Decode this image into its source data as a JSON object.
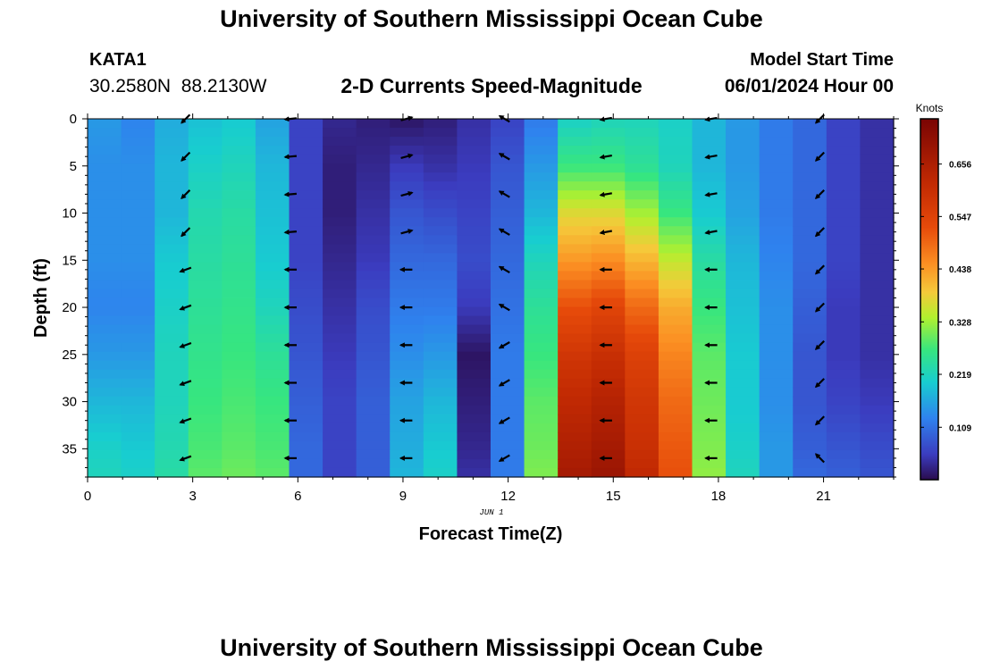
{
  "header": {
    "title": "University of Southern Mississippi Ocean Cube",
    "station": "KATA1",
    "coordinates": "30.2580N  88.2130W",
    "chart_title": "2-D Currents Speed-Magnitude",
    "model_start_label": "Model Start Time",
    "model_start_value": "06/01/2024 Hour 00",
    "date_stamp": "JUN 1"
  },
  "footer": {
    "title": "University of Southern Mississippi Ocean Cube"
  },
  "chart_data": {
    "type": "heatmap",
    "title": "2-D Currents Speed-Magnitude",
    "xlabel": "Forecast Time(Z)",
    "ylabel": "Depth (ft)",
    "xlim": [
      0,
      23
    ],
    "ylim": [
      38,
      0
    ],
    "x_ticks": [
      0,
      3,
      6,
      9,
      12,
      15,
      18,
      21
    ],
    "y_ticks": [
      0,
      5,
      10,
      15,
      20,
      25,
      30,
      35
    ],
    "colorbar": {
      "label": "Knots",
      "range": [
        0,
        0.75
      ],
      "ticks": [
        0.109,
        0.219,
        0.328,
        0.438,
        0.547,
        0.656
      ]
    },
    "hours": [
      0,
      1,
      2,
      3,
      4,
      5,
      6,
      7,
      8,
      9,
      10,
      11,
      12,
      13,
      14,
      15,
      16,
      17,
      18,
      19,
      20,
      21,
      22,
      23
    ],
    "depths": [
      0,
      5,
      10,
      15,
      20,
      25,
      30,
      35,
      38
    ],
    "speed_knots": [
      [
        0.15,
        0.13,
        0.17,
        0.19,
        0.2,
        0.16,
        0.06,
        0.03,
        0.02,
        0.01,
        0.02,
        0.04,
        0.06,
        0.12,
        0.21,
        0.22,
        0.22,
        0.21,
        0.18,
        0.15,
        0.12,
        0.1,
        0.06,
        0.04
      ],
      [
        0.14,
        0.14,
        0.18,
        0.21,
        0.22,
        0.18,
        0.06,
        0.02,
        0.03,
        0.05,
        0.04,
        0.05,
        0.08,
        0.15,
        0.27,
        0.27,
        0.25,
        0.22,
        0.18,
        0.15,
        0.12,
        0.1,
        0.06,
        0.04
      ],
      [
        0.14,
        0.14,
        0.18,
        0.23,
        0.24,
        0.19,
        0.06,
        0.02,
        0.04,
        0.08,
        0.07,
        0.06,
        0.09,
        0.18,
        0.37,
        0.37,
        0.33,
        0.27,
        0.2,
        0.16,
        0.12,
        0.1,
        0.06,
        0.04
      ],
      [
        0.14,
        0.14,
        0.2,
        0.24,
        0.25,
        0.2,
        0.06,
        0.03,
        0.05,
        0.1,
        0.1,
        0.07,
        0.1,
        0.22,
        0.44,
        0.45,
        0.41,
        0.35,
        0.24,
        0.18,
        0.13,
        0.1,
        0.06,
        0.04
      ],
      [
        0.13,
        0.13,
        0.21,
        0.25,
        0.26,
        0.22,
        0.07,
        0.04,
        0.07,
        0.12,
        0.12,
        0.05,
        0.11,
        0.25,
        0.52,
        0.54,
        0.49,
        0.42,
        0.27,
        0.19,
        0.14,
        0.09,
        0.05,
        0.04
      ],
      [
        0.15,
        0.15,
        0.22,
        0.26,
        0.27,
        0.25,
        0.08,
        0.05,
        0.08,
        0.14,
        0.15,
        0.01,
        0.12,
        0.27,
        0.58,
        0.6,
        0.55,
        0.46,
        0.29,
        0.2,
        0.14,
        0.08,
        0.05,
        0.04
      ],
      [
        0.18,
        0.18,
        0.22,
        0.27,
        0.28,
        0.27,
        0.09,
        0.06,
        0.09,
        0.16,
        0.18,
        0.02,
        0.12,
        0.29,
        0.62,
        0.64,
        0.58,
        0.49,
        0.3,
        0.2,
        0.14,
        0.08,
        0.06,
        0.05
      ],
      [
        0.21,
        0.2,
        0.23,
        0.28,
        0.29,
        0.28,
        0.1,
        0.06,
        0.09,
        0.17,
        0.2,
        0.03,
        0.12,
        0.3,
        0.65,
        0.67,
        0.6,
        0.51,
        0.31,
        0.21,
        0.15,
        0.09,
        0.08,
        0.07
      ],
      [
        0.22,
        0.21,
        0.24,
        0.29,
        0.3,
        0.29,
        0.1,
        0.06,
        0.09,
        0.18,
        0.21,
        0.04,
        0.12,
        0.31,
        0.67,
        0.69,
        0.62,
        0.52,
        0.32,
        0.22,
        0.15,
        0.1,
        0.09,
        0.08
      ]
    ],
    "vectors": {
      "hours": [
        2.8,
        5.8,
        9.1,
        11.9,
        14.8,
        17.8,
        20.9
      ],
      "depths": [
        0,
        4,
        8,
        12,
        16,
        20,
        24,
        28,
        32,
        36
      ],
      "directions_deg": [
        [
          225,
          225,
          225,
          225,
          200,
          200,
          200,
          200,
          200,
          200
        ],
        [
          185,
          185,
          185,
          185,
          180,
          180,
          180,
          180,
          180,
          180
        ],
        [
          15,
          15,
          15,
          15,
          180,
          180,
          180,
          180,
          180,
          180
        ],
        [
          150,
          150,
          150,
          150,
          150,
          150,
          210,
          210,
          210,
          210
        ],
        [
          190,
          190,
          190,
          190,
          180,
          180,
          180,
          180,
          180,
          180
        ],
        [
          190,
          190,
          190,
          190,
          180,
          180,
          180,
          180,
          180,
          180
        ],
        [
          225,
          225,
          225,
          225,
          225,
          225,
          225,
          225,
          225,
          135
        ]
      ]
    }
  }
}
